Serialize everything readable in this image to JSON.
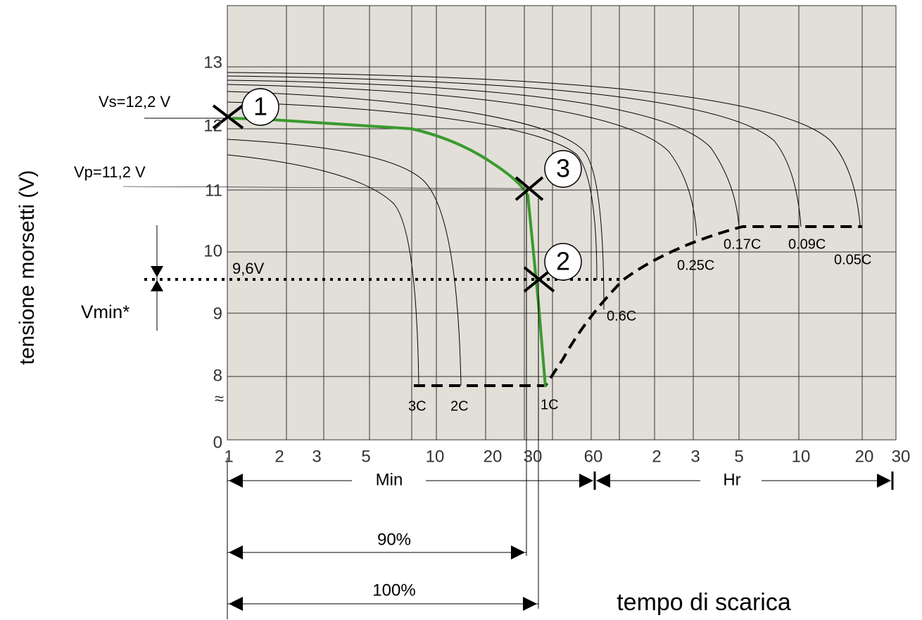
{
  "y_axis": {
    "title": "tensione morsetti (V)",
    "ticks": [
      "13",
      "12",
      "11",
      "10",
      "9",
      "8",
      "0"
    ],
    "break": "≈"
  },
  "x_axis": {
    "title": "tempo di scarica",
    "ticks": [
      "1",
      "2",
      "3",
      "5",
      "10",
      "20",
      "30",
      "60",
      "2",
      "3",
      "5",
      "10",
      "20",
      "30"
    ],
    "min_label": "Min",
    "hr_label": "Hr"
  },
  "annotations": {
    "vs": "Vs=12,2 V",
    "vp": "Vp=11,2 V",
    "vcut": "9,6V",
    "vmin": "Vmin*",
    "p90": "90%",
    "p100": "100%"
  },
  "points": [
    "1",
    "2",
    "3"
  ],
  "curves": [
    "3C",
    "2C",
    "1C",
    "0.6C",
    "0.25C",
    "0.17C",
    "0.09C",
    "0.05C"
  ]
}
